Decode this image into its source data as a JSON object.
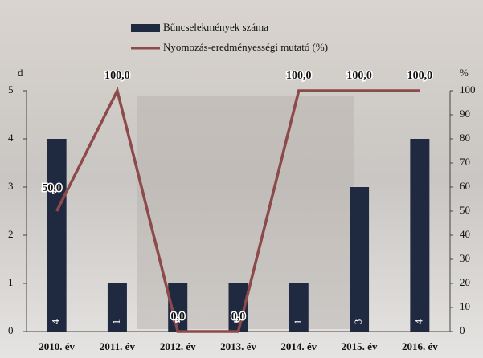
{
  "chart_data": {
    "type": "bar",
    "categories": [
      "2010. év",
      "2011. év",
      "2012. év",
      "2013. év",
      "2014. év",
      "2015. év",
      "2016. év"
    ],
    "series": [
      {
        "name": "Bűncselekmények száma",
        "type": "bar",
        "color": "#1f2940",
        "values": [
          4,
          1,
          1,
          1,
          1,
          3,
          4
        ]
      },
      {
        "name": "Nyomozás-eredményességi mutató (%)",
        "type": "line",
        "axis": "y2",
        "color": "#8c4a4a",
        "values": [
          50,
          100,
          0,
          0,
          100,
          100,
          100
        ],
        "value_labels": [
          "50,0",
          "100,0",
          "0,0",
          "0,0",
          "100,0",
          "100,0",
          "100,0"
        ]
      }
    ],
    "ylabel": "d",
    "y2label": "%",
    "ylim": [
      0,
      5
    ],
    "yticks": [
      0,
      1,
      2,
      3,
      4,
      5
    ],
    "y2lim": [
      0,
      100
    ],
    "y2ticks": [
      0,
      10,
      20,
      30,
      40,
      50,
      60,
      70,
      80,
      90,
      100
    ],
    "legend": "top"
  }
}
